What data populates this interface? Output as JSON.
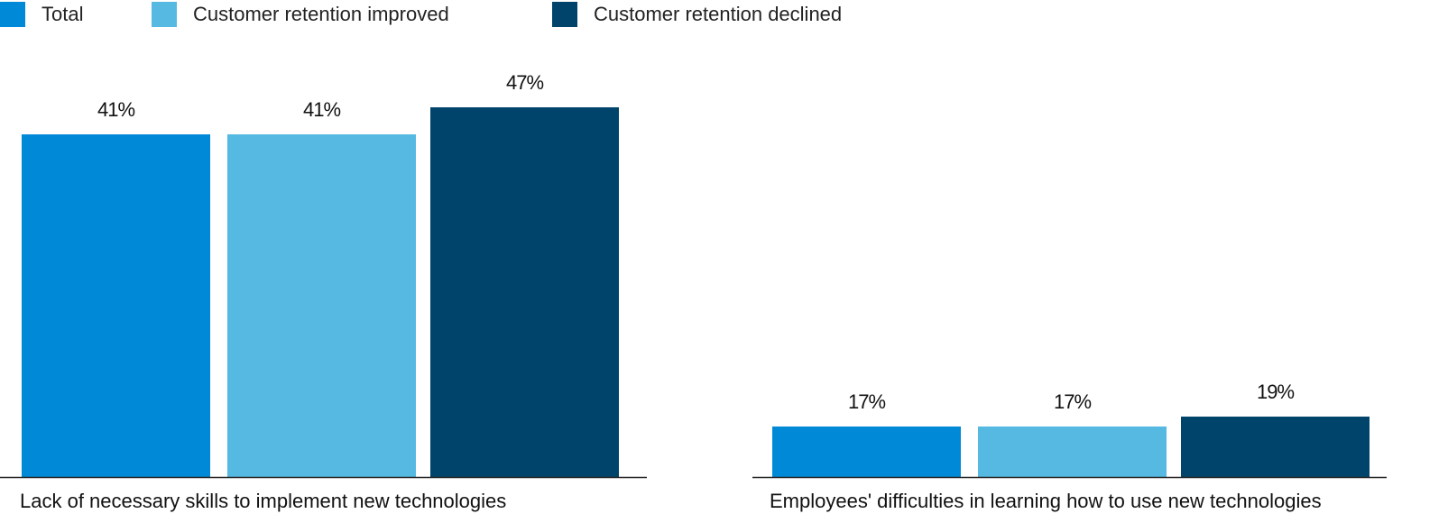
{
  "chart_data": {
    "type": "bar",
    "title": "",
    "xlabel": "",
    "ylabel": "",
    "grid": false,
    "legend_position": "top-left",
    "legend": [
      {
        "name": "Total",
        "color": "#0089d6"
      },
      {
        "name": "Customer retention improved",
        "color": "#55b9e2"
      },
      {
        "name": "Customer retention declined",
        "color": "#00446b"
      }
    ],
    "categories": [
      "Lack of necessary skills to implement new technologies",
      "Employees' difficulties in learning how to use new technologies"
    ],
    "series": [
      {
        "name": "Total",
        "values": [
          41,
          17
        ],
        "labels": [
          "41%",
          "17%"
        ]
      },
      {
        "name": "Customer retention improved",
        "values": [
          41,
          17
        ],
        "labels": [
          "41%",
          "17%"
        ]
      },
      {
        "name": "Customer retention declined",
        "values": [
          47,
          19
        ],
        "labels": [
          "47%",
          "19%"
        ]
      }
    ],
    "unit": "%"
  }
}
